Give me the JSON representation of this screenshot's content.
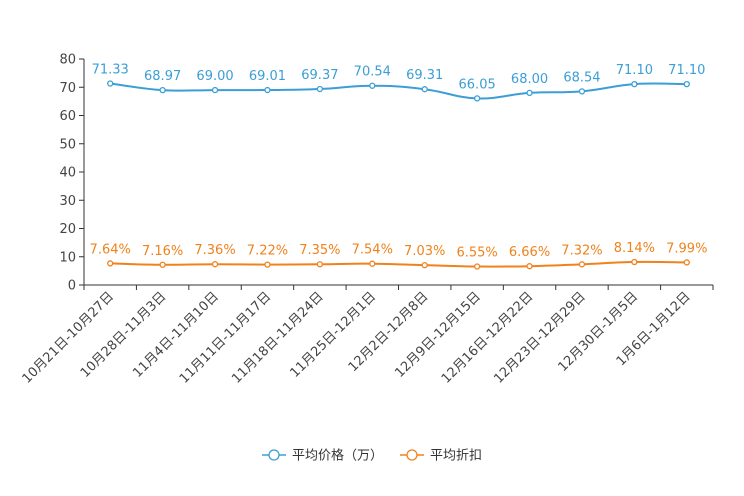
{
  "chart_data": {
    "type": "line",
    "categories": [
      "10月21日-10月27日",
      "10月28日-11月3日",
      "11月4日-11月10日",
      "11月11日-11月17日",
      "11月18日-11月24日",
      "11月25日-12月1日",
      "12月2日-12月8日",
      "12月9日-12月15日",
      "12月16日-12月22日",
      "12月23日-12月29日",
      "12月30日-1月5日",
      "1月6日-1月12日"
    ],
    "series": [
      {
        "name": "平均价格（万）",
        "color": "#3b9ed6",
        "values": [
          71.33,
          68.97,
          69.0,
          69.01,
          69.37,
          70.54,
          69.31,
          66.05,
          68.0,
          68.54,
          71.1,
          71.1
        ],
        "labels": [
          "71.33",
          "68.97",
          "69.00",
          "69.01",
          "69.37",
          "70.54",
          "69.31",
          "66.05",
          "68.00",
          "68.54",
          "71.10",
          "71.10"
        ]
      },
      {
        "name": "平均折扣",
        "color": "#f0821c",
        "values": [
          7.64,
          7.16,
          7.36,
          7.22,
          7.35,
          7.54,
          7.03,
          6.55,
          6.66,
          7.32,
          8.14,
          7.99
        ],
        "labels": [
          "7.64%",
          "7.16%",
          "7.36%",
          "7.22%",
          "7.35%",
          "7.54%",
          "7.03%",
          "6.55%",
          "6.66%",
          "7.32%",
          "8.14%",
          "7.99%"
        ]
      }
    ],
    "yticks": [
      "0",
      "10",
      "20",
      "30",
      "40",
      "50",
      "60",
      "70",
      "80"
    ],
    "ylim": [
      0,
      80
    ],
    "legend_position": "bottom-center",
    "grid": false
  }
}
